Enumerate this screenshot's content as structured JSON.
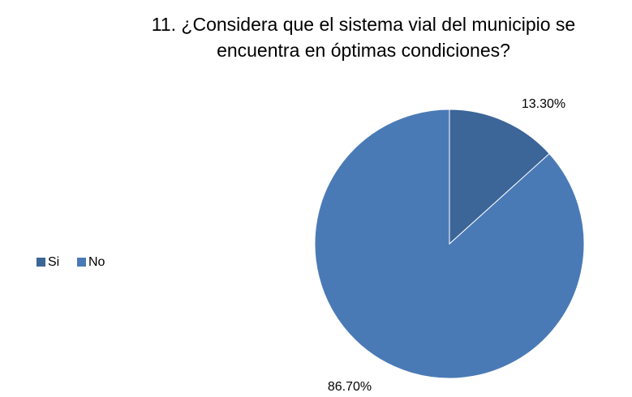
{
  "chart_data": {
    "type": "pie",
    "title": [
      "11. ¿Considera que el sistema vial del municipio se",
      "encuentra en óptimas condiciones?"
    ],
    "categories": [
      "Si",
      "No"
    ],
    "values": [
      13.3,
      86.7
    ],
    "value_labels": [
      "13.30%",
      "86.70%"
    ],
    "colors": [
      "#3c6598",
      "#4a7ab6"
    ],
    "legend": "left"
  }
}
